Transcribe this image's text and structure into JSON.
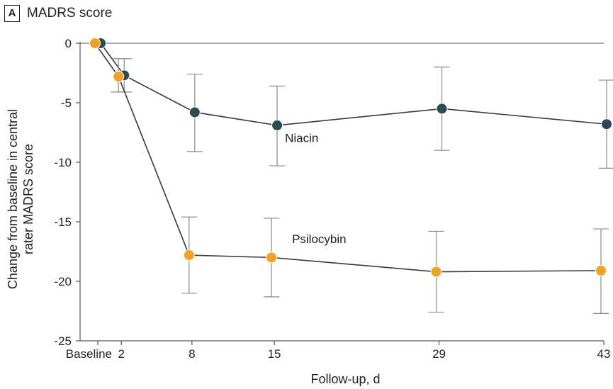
{
  "panel": {
    "letter": "A",
    "title": "MADRS score"
  },
  "chart_data": {
    "type": "line",
    "title": "MADRS score",
    "xlabel": "Follow-up, d",
    "ylabel_lines": [
      "Change from baseline in central",
      "rater MADRS score"
    ],
    "x": [
      0,
      2,
      8,
      15,
      29,
      43
    ],
    "x_tick_labels": [
      "Baseline",
      "2",
      "8",
      "15",
      "29",
      "43"
    ],
    "xlim": [
      0,
      43
    ],
    "ylim": [
      -25,
      0
    ],
    "y_ticks": [
      0,
      -5,
      -10,
      -15,
      -20,
      -25
    ],
    "y_tick_labels": [
      "0",
      "-5",
      "-10",
      "-15",
      "-20",
      "-25"
    ],
    "series": [
      {
        "name": "Niacin",
        "color": "#2c4a52",
        "values": [
          0,
          -2.7,
          -5.8,
          -6.9,
          -5.5,
          -6.8
        ],
        "err_low": [
          0,
          -4.1,
          -9.1,
          -10.3,
          -9.0,
          -10.5
        ],
        "err_high": [
          0,
          -1.3,
          -2.6,
          -3.6,
          -2.0,
          -3.1
        ]
      },
      {
        "name": "Psilocybin",
        "color": "#f5a11c",
        "values": [
          0,
          -2.8,
          -17.8,
          -18.0,
          -19.2,
          -19.1
        ],
        "err_low": [
          0,
          -4.1,
          -21.0,
          -21.3,
          -22.6,
          -22.7
        ],
        "err_high": [
          0,
          -1.3,
          -14.6,
          -14.7,
          -15.8,
          -15.6
        ]
      }
    ],
    "annotations": [
      {
        "text": "Niacin",
        "series": "Niacin"
      },
      {
        "text": "Psilocybin",
        "series": "Psilocybin"
      }
    ],
    "grid": false
  }
}
